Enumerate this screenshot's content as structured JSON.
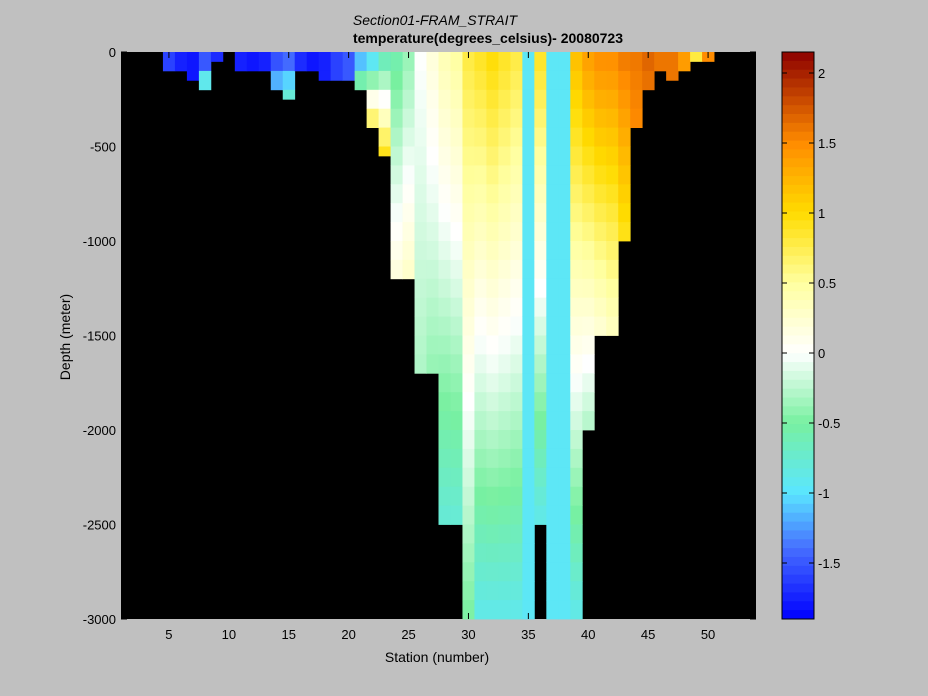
{
  "chart_data": {
    "type": "heatmap",
    "title": "Section01-FRAM_STRAIT",
    "subtitle": "temperature(degrees_celsius)- 20080723",
    "xlabel": "Station (number)",
    "ylabel": "Depth (meter)",
    "xlim": [
      1,
      54
    ],
    "ylim": [
      -3000,
      0
    ],
    "x_ticks": [
      5,
      10,
      15,
      20,
      25,
      30,
      35,
      40,
      45,
      50
    ],
    "x_tick_labels": [
      "5",
      "10",
      "15",
      "20",
      "25",
      "30",
      "35",
      "40",
      "45",
      "50"
    ],
    "y_ticks": [
      0,
      -500,
      -1000,
      -1500,
      -2000,
      -2500,
      -3000
    ],
    "y_tick_labels": [
      "0",
      "-500",
      "-1000",
      "-1500",
      "-2000",
      "-2500",
      "-3000"
    ],
    "colorbar": {
      "range": [
        -1.9,
        2.15
      ],
      "ticks": [
        2,
        1.5,
        1,
        0.5,
        0,
        -0.5,
        -1,
        -1.5
      ],
      "tick_labels": [
        "2",
        "1.5",
        "1",
        "0.5",
        "0",
        "-0.5",
        "-1",
        "-1.5"
      ],
      "colormap": "jet-white"
    },
    "background_color": "#000000",
    "cell_height_m": 100,
    "stations": [
      {
        "station": 5,
        "bottom": -100,
        "surface": -1.6
      },
      {
        "station": 6,
        "bottom": -100,
        "surface": -1.75
      },
      {
        "station": 7,
        "bottom": -150,
        "surface": -1.8
      },
      {
        "station": 8,
        "bottom": -200,
        "surface": -1.8,
        "deep": -0.6
      },
      {
        "station": 9,
        "bottom": -50,
        "surface": -1.7
      },
      {
        "station": 11,
        "bottom": -100,
        "surface": -1.75
      },
      {
        "station": 12,
        "bottom": -100,
        "surface": -1.8
      },
      {
        "station": 13,
        "bottom": -100,
        "surface": -1.75
      },
      {
        "station": 14,
        "bottom": -200,
        "surface": -1.7,
        "deep": -1.0
      },
      {
        "station": 15,
        "bottom": -250,
        "surface": -1.6,
        "deep": -0.7
      },
      {
        "station": 16,
        "bottom": -100,
        "surface": -1.7
      },
      {
        "station": 17,
        "bottom": -100,
        "surface": -1.8
      },
      {
        "station": 18,
        "bottom": -150,
        "surface": -1.75
      },
      {
        "station": 19,
        "bottom": -150,
        "surface": -1.6
      },
      {
        "station": 20,
        "bottom": -150,
        "surface": -1.5
      },
      {
        "station": 21,
        "bottom": -200,
        "surface": -1.4,
        "deep": -0.3
      },
      {
        "station": 22,
        "bottom": -400,
        "surface": -1.2,
        "deep": 0.9
      },
      {
        "station": 23,
        "bottom": -550,
        "surface": -0.8,
        "deep": 1.0
      },
      {
        "station": 24,
        "bottom": -1200,
        "surface": -0.6,
        "deep": 0.2
      },
      {
        "station": 25,
        "bottom": -1200,
        "surface": -0.4,
        "deep": 0.3
      },
      {
        "station": 26,
        "bottom": -1700,
        "surface": 0.0,
        "deep": -0.3
      },
      {
        "station": 27,
        "bottom": -1700,
        "surface": 0.2,
        "deep": -0.4
      },
      {
        "station": 28,
        "bottom": -2500,
        "surface": 0.4,
        "deep": -0.8
      },
      {
        "station": 29,
        "bottom": -2500,
        "surface": 0.5,
        "deep": -0.8
      },
      {
        "station": 30,
        "bottom": -3000,
        "surface": 0.8,
        "deep": -0.5
      },
      {
        "station": 31,
        "bottom": -3000,
        "surface": 0.9,
        "deep": -0.9
      },
      {
        "station": 32,
        "bottom": -3000,
        "surface": 1.0,
        "deep": -0.9
      },
      {
        "station": 33,
        "bottom": -3000,
        "surface": 0.9,
        "deep": -0.9
      },
      {
        "station": 34,
        "bottom": -3000,
        "surface": 0.8,
        "deep": -0.9
      },
      {
        "station": 35,
        "bottom": -3000,
        "uniform": -0.95
      },
      {
        "station": 36,
        "bottom": -2500,
        "surface": 0.9,
        "deep": -0.9
      },
      {
        "station": 37,
        "bottom": -3000,
        "uniform": -0.95
      },
      {
        "station": 38,
        "bottom": -3000,
        "uniform": -0.95
      },
      {
        "station": 39,
        "bottom": -3000,
        "surface": 1.2,
        "deep": -0.9
      },
      {
        "station": 40,
        "bottom": -2000,
        "surface": 1.4,
        "deep": -0.3
      },
      {
        "station": 41,
        "bottom": -1500,
        "surface": 1.5,
        "deep": 0.2
      },
      {
        "station": 42,
        "bottom": -1500,
        "surface": 1.5,
        "deep": 0.3
      },
      {
        "station": 43,
        "bottom": -1000,
        "surface": 1.6,
        "deep": 0.9
      },
      {
        "station": 44,
        "bottom": -400,
        "surface": 1.6,
        "deep": 1.5
      },
      {
        "station": 45,
        "bottom": -200,
        "surface": 1.7,
        "deep": 1.6
      },
      {
        "station": 46,
        "bottom": -100,
        "surface": 1.6
      },
      {
        "station": 47,
        "bottom": -150,
        "surface": 1.6
      },
      {
        "station": 48,
        "bottom": -100,
        "surface": 1.4
      },
      {
        "station": 49,
        "bottom": -50,
        "surface": 0.8
      },
      {
        "station": 50,
        "bottom": -50,
        "surface": 1.5
      }
    ]
  }
}
